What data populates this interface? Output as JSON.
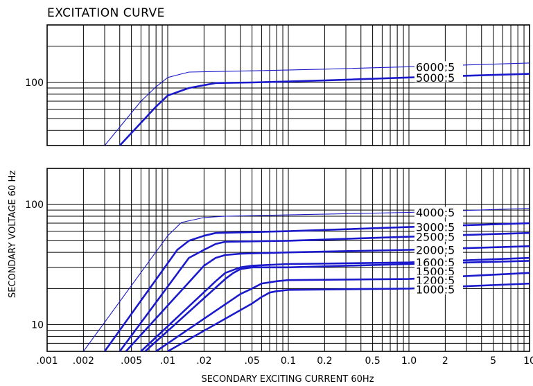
{
  "chart_data": [
    {
      "type": "line",
      "title": "EXCITATION CURVE",
      "xlabel": "SECONDARY EXCITING CURRENT 60Hz",
      "ylabel": "SECONDARY VOLTAGE 60 Hz",
      "x_scale": "log",
      "y_scale": "log",
      "xlim": [
        0.001,
        10
      ],
      "ylim": [
        30,
        300
      ],
      "y_tick_labels": [
        {
          "value": 100,
          "label": "100"
        }
      ],
      "grid": true,
      "series": [
        {
          "name": "6000:5",
          "weight": "light",
          "x": [
            0.003,
            0.006,
            0.008,
            0.01,
            0.015,
            0.05,
            0.2,
            1.0,
            10
          ],
          "y": [
            30,
            70,
            92,
            110,
            122,
            125,
            129,
            135,
            145
          ]
        },
        {
          "name": "5000:5",
          "weight": "bold",
          "x": [
            0.004,
            0.008,
            0.01,
            0.015,
            0.025,
            0.05,
            0.2,
            1.0,
            10
          ],
          "y": [
            30,
            63,
            78,
            90,
            99,
            100,
            104,
            110,
            118
          ]
        }
      ]
    },
    {
      "type": "line",
      "x_scale": "log",
      "y_scale": "log",
      "xlim": [
        0.001,
        10
      ],
      "ylim": [
        6,
        200
      ],
      "x_tick_labels": [
        {
          "value": 0.001,
          "label": ".001"
        },
        {
          "value": 0.002,
          "label": ".002"
        },
        {
          "value": 0.005,
          "label": ".005"
        },
        {
          "value": 0.01,
          "label": ".01"
        },
        {
          "value": 0.02,
          "label": ".02"
        },
        {
          "value": 0.05,
          "label": ".05"
        },
        {
          "value": 0.1,
          "label": "0.1"
        },
        {
          "value": 0.2,
          "label": "0.2"
        },
        {
          "value": 0.5,
          "label": "0.5"
        },
        {
          "value": 1.0,
          "label": "1.0"
        },
        {
          "value": 2,
          "label": "2"
        },
        {
          "value": 5,
          "label": "5"
        },
        {
          "value": 10,
          "label": "10"
        }
      ],
      "y_tick_labels": [
        {
          "value": 100,
          "label": "100"
        },
        {
          "value": 10,
          "label": "10"
        }
      ],
      "grid": true,
      "series": [
        {
          "name": "4000:5",
          "weight": "light",
          "x": [
            0.002,
            0.01,
            0.013,
            0.02,
            0.03,
            0.1,
            1.0,
            10
          ],
          "y": [
            6,
            55,
            71,
            78,
            80,
            82,
            86,
            93
          ]
        },
        {
          "name": "3000:5",
          "weight": "bold",
          "x": [
            0.003,
            0.012,
            0.015,
            0.02,
            0.025,
            0.1,
            1.0,
            10
          ],
          "y": [
            6,
            42,
            50,
            55,
            58,
            60,
            65,
            70
          ]
        },
        {
          "name": "2500:5",
          "weight": "bold",
          "x": [
            0.004,
            0.015,
            0.02,
            0.025,
            0.03,
            0.1,
            1.0,
            10
          ],
          "y": [
            6,
            36,
            42,
            47,
            49,
            50,
            54,
            58
          ]
        },
        {
          "name": "2000:5",
          "weight": "bold",
          "x": [
            0.0045,
            0.02,
            0.025,
            0.03,
            0.04,
            0.1,
            1.0,
            10
          ],
          "y": [
            6,
            31,
            36,
            38,
            39,
            40,
            42,
            45
          ]
        },
        {
          "name": "1600:5",
          "weight": "bold",
          "x": [
            0.006,
            0.025,
            0.03,
            0.04,
            0.05,
            0.1,
            1.0,
            10
          ],
          "y": [
            6,
            23,
            27,
            30,
            31,
            32,
            33,
            36
          ]
        },
        {
          "name": "1500:5",
          "weight": "bold",
          "x": [
            0.0065,
            0.03,
            0.035,
            0.04,
            0.05,
            0.1,
            1.0,
            10
          ],
          "y": [
            6,
            24,
            27,
            29,
            30,
            30,
            32,
            34
          ]
        },
        {
          "name": "1200:5",
          "weight": "bold",
          "x": [
            0.008,
            0.04,
            0.05,
            0.06,
            0.08,
            0.1,
            1.0,
            10
          ],
          "y": [
            6,
            18,
            20,
            22,
            23,
            23.5,
            24,
            27
          ]
        },
        {
          "name": "1000:5",
          "weight": "bold",
          "x": [
            0.01,
            0.05,
            0.06,
            0.07,
            0.08,
            0.1,
            1.0,
            10
          ],
          "y": [
            6,
            15,
            17,
            18.5,
            19,
            19.5,
            20,
            22
          ]
        }
      ]
    }
  ],
  "colors": {
    "curve": "#1a1acc",
    "grid": "#000000",
    "text": "#000000"
  }
}
